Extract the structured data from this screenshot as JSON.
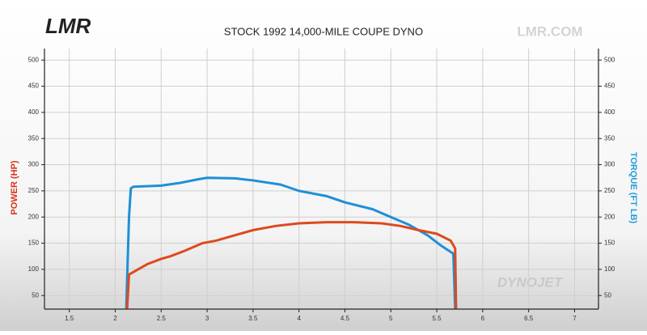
{
  "chart_data": {
    "type": "line",
    "title": "STOCK 1992 14,000-MILE COUPE DYNO",
    "logo": "LMR",
    "site": "LMR.COM",
    "watermark": "DYNOJET",
    "ylabel": "POWER (HP)",
    "y2label": "TORQUE (FT LB)",
    "ylabel_color": "#d9341c",
    "y2label_color": "#1f9ed8",
    "xlim": [
      1.23,
      7.26
    ],
    "xticks": [
      1.5,
      2,
      2.5,
      3,
      3.5,
      4,
      4.5,
      5,
      5.5,
      6,
      6.5,
      7
    ],
    "ylim": [
      24,
      522
    ],
    "yticks": [
      50,
      100,
      150,
      200,
      250,
      300,
      350,
      400,
      450,
      500
    ],
    "y2lim": [
      24,
      522
    ],
    "y2ticks": [
      50,
      100,
      150,
      200,
      250,
      300,
      350,
      400,
      450,
      500
    ],
    "grid": true,
    "series": [
      {
        "color": "#1f8fd6",
        "axis": "y2",
        "x": [
          2.12,
          2.15,
          2.17,
          2.2,
          2.5,
          2.7,
          2.9,
          3.0,
          3.3,
          3.5,
          3.8,
          4.0,
          4.3,
          4.5,
          4.8,
          5.0,
          5.2,
          5.4,
          5.55,
          5.68,
          5.7
        ],
        "values": [
          25,
          200,
          255,
          258,
          260,
          265,
          272,
          275,
          274,
          270,
          262,
          250,
          240,
          228,
          215,
          200,
          185,
          165,
          145,
          130,
          25
        ]
      },
      {
        "color": "#dc4a1e",
        "x": [
          2.13,
          2.15,
          2.25,
          2.35,
          2.5,
          2.6,
          2.75,
          2.95,
          3.1,
          3.3,
          3.5,
          3.75,
          4.0,
          4.3,
          4.6,
          4.9,
          5.1,
          5.3,
          5.5,
          5.65,
          5.7,
          5.71
        ],
        "values": [
          25,
          90,
          100,
          110,
          120,
          125,
          135,
          150,
          155,
          165,
          175,
          183,
          188,
          190,
          190,
          188,
          183,
          175,
          168,
          155,
          140,
          25
        ]
      }
    ]
  }
}
